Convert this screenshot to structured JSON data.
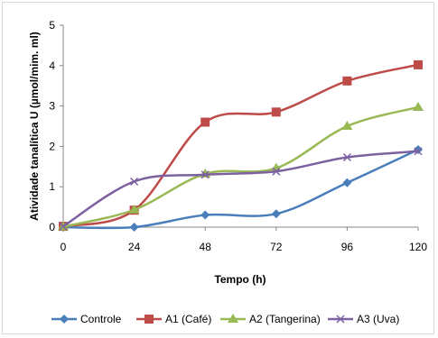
{
  "chart_data": {
    "type": "line",
    "title": "",
    "xlabel": "Tempo (h)",
    "ylabel": "Atividade tanalítica U (µmol/mim. ml)",
    "x": [
      0,
      24,
      48,
      72,
      96,
      120
    ],
    "xlim": [
      0,
      120
    ],
    "ylim": [
      0,
      5
    ],
    "yticks": [
      0,
      1,
      2,
      3,
      4,
      5
    ],
    "grid": false,
    "legend_position": "bottom",
    "smooth": true,
    "series": [
      {
        "name": "Controle",
        "color": "#4a7ebb",
        "marker": "diamond",
        "values": [
          0,
          0,
          0.3,
          0.33,
          1.1,
          1.92
        ]
      },
      {
        "name": "A1 (Café)",
        "color": "#be4b48",
        "marker": "square",
        "values": [
          0.02,
          0.42,
          2.6,
          2.85,
          3.62,
          4.02
        ]
      },
      {
        "name": "A2 (Tangerina)",
        "color": "#98b954",
        "marker": "triangle",
        "values": [
          0.01,
          0.43,
          1.32,
          1.46,
          2.5,
          2.97
        ]
      },
      {
        "name": "A3 (Uva)",
        "color": "#7d60a0",
        "marker": "x",
        "values": [
          0.02,
          1.13,
          1.3,
          1.38,
          1.73,
          1.88
        ]
      }
    ]
  }
}
